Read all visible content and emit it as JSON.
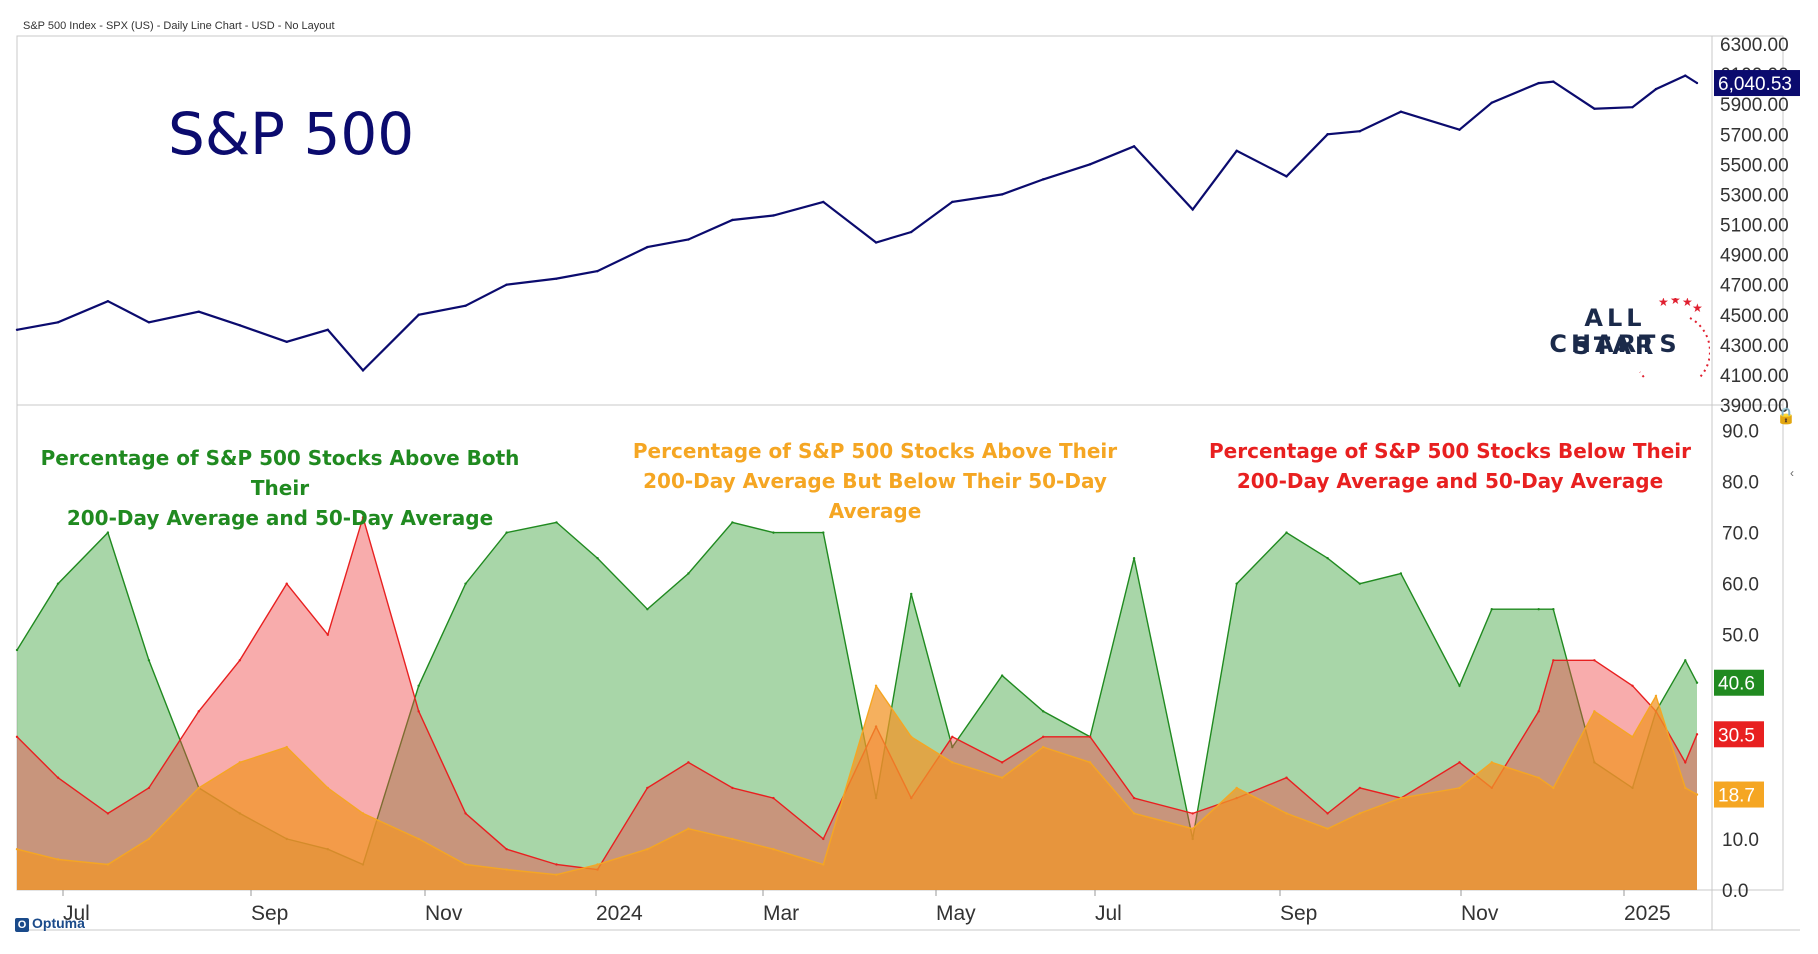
{
  "header": {
    "text": "S&P 500 Index - SPX (US) - Daily Line Chart - USD - No Layout"
  },
  "brand": {
    "line1": "ALL STAR",
    "line2": "CHARTS",
    "optuma": "Optuma"
  },
  "colors": {
    "spx": "#0b0b6e",
    "green": "#208a20",
    "red": "#e82020",
    "orange": "#f5a623"
  },
  "chart_data": [
    {
      "type": "line",
      "title": "S&P 500",
      "ylim": [
        3900,
        6300
      ],
      "yticks": [
        "6300.00",
        "6100.00",
        "5900.00",
        "5700.00",
        "5500.00",
        "5300.00",
        "5100.00",
        "4900.00",
        "4700.00",
        "4500.00",
        "4300.00",
        "4100.00",
        "3900.00"
      ],
      "last_value_label": "6,040.53",
      "x_labels": [
        "Jul",
        "Sep",
        "Nov",
        "2024",
        "Mar",
        "May",
        "Jul",
        "Sep",
        "Nov",
        "2025"
      ],
      "x": [
        "2023-07-01",
        "2023-07-15",
        "2023-08-01",
        "2023-08-15",
        "2023-09-01",
        "2023-09-15",
        "2023-10-01",
        "2023-10-15",
        "2023-10-27",
        "2023-11-15",
        "2023-12-01",
        "2023-12-15",
        "2024-01-01",
        "2024-01-15",
        "2024-02-01",
        "2024-02-15",
        "2024-03-01",
        "2024-03-15",
        "2024-04-01",
        "2024-04-19",
        "2024-05-01",
        "2024-05-15",
        "2024-06-01",
        "2024-06-15",
        "2024-07-01",
        "2024-07-16",
        "2024-08-05",
        "2024-08-20",
        "2024-09-06",
        "2024-09-20",
        "2024-10-01",
        "2024-10-15",
        "2024-11-04",
        "2024-11-15",
        "2024-12-01",
        "2024-12-06",
        "2024-12-20",
        "2025-01-02",
        "2025-01-10",
        "2025-01-20",
        "2025-01-24"
      ],
      "series": [
        {
          "values": [
            4400,
            4450,
            4590,
            4450,
            4520,
            4430,
            4320,
            4400,
            4130,
            4500,
            4560,
            4700,
            4740,
            4790,
            4950,
            5000,
            5130,
            5160,
            5250,
            4980,
            5050,
            5250,
            5300,
            5400,
            5500,
            5620,
            5200,
            5590,
            5420,
            5700,
            5720,
            5850,
            5730,
            5910,
            6040,
            6050,
            5870,
            5880,
            6000,
            6090,
            6040.53
          ]
        }
      ]
    },
    {
      "type": "area",
      "ylim": [
        0,
        95
      ],
      "yticks": [
        "90.0",
        "80.0",
        "70.0",
        "60.0",
        "50.0",
        "40.0",
        "30.0",
        "20.0",
        "10.0",
        "0.0"
      ],
      "x": [
        "2023-07-01",
        "2023-07-15",
        "2023-08-01",
        "2023-08-15",
        "2023-09-01",
        "2023-09-15",
        "2023-10-01",
        "2023-10-15",
        "2023-10-27",
        "2023-11-15",
        "2023-12-01",
        "2023-12-15",
        "2024-01-01",
        "2024-01-15",
        "2024-02-01",
        "2024-02-15",
        "2024-03-01",
        "2024-03-15",
        "2024-04-01",
        "2024-04-19",
        "2024-05-01",
        "2024-05-15",
        "2024-06-01",
        "2024-06-15",
        "2024-07-01",
        "2024-07-16",
        "2024-08-05",
        "2024-08-20",
        "2024-09-06",
        "2024-09-20",
        "2024-10-01",
        "2024-10-15",
        "2024-11-04",
        "2024-11-15",
        "2024-12-01",
        "2024-12-06",
        "2024-12-20",
        "2025-01-02",
        "2025-01-10",
        "2025-01-20",
        "2025-01-24"
      ],
      "series": [
        {
          "name": "Percentage of S&P 500 Stocks Above Both Their 200-Day Average and 50-Day Average",
          "label_lines": [
            "Percentage of S&P 500 Stocks Above Both Their",
            "200-Day Average and 50-Day Average"
          ],
          "last_label": "40.6",
          "values": [
            47,
            60,
            70,
            45,
            20,
            15,
            10,
            8,
            5,
            40,
            60,
            70,
            72,
            65,
            55,
            62,
            72,
            70,
            70,
            18,
            58,
            28,
            42,
            35,
            30,
            65,
            10,
            60,
            70,
            65,
            60,
            62,
            40,
            55,
            55,
            55,
            25,
            20,
            35,
            45,
            40.6
          ]
        },
        {
          "name": "Percentage of S&P 500 Stocks Below Their 200-Day Average and 50-Day Average",
          "label_lines": [
            "Percentage of S&P 500 Stocks Below Their",
            "200-Day Average and 50-Day Average"
          ],
          "last_label": "30.5",
          "values": [
            30,
            22,
            15,
            20,
            35,
            45,
            60,
            50,
            73,
            35,
            15,
            8,
            5,
            4,
            20,
            25,
            20,
            18,
            10,
            32,
            18,
            30,
            25,
            30,
            30,
            18,
            15,
            18,
            22,
            15,
            20,
            18,
            25,
            20,
            35,
            45,
            45,
            40,
            35,
            25,
            30.5
          ]
        },
        {
          "name": "Percentage of S&P 500 Stocks Above Their 200-Day Average But Below Their 50-Day Average",
          "label_lines": [
            "Percentage of S&P 500 Stocks Above Their",
            "200-Day Average But Below Their 50-Day Average"
          ],
          "last_label": "18.7",
          "values": [
            8,
            6,
            5,
            10,
            20,
            25,
            28,
            20,
            15,
            10,
            5,
            4,
            3,
            5,
            8,
            12,
            10,
            8,
            5,
            40,
            30,
            25,
            22,
            28,
            25,
            15,
            12,
            20,
            15,
            12,
            15,
            18,
            20,
            25,
            22,
            20,
            35,
            30,
            38,
            20,
            18.7
          ]
        }
      ]
    }
  ]
}
